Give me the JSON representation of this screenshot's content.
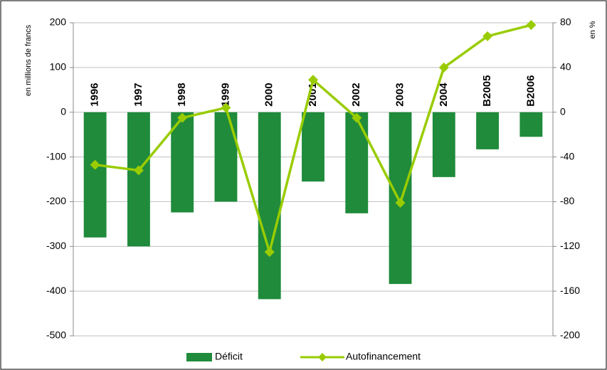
{
  "chart_data": {
    "type": "bar",
    "categories": [
      "1996",
      "1997",
      "1998",
      "1999",
      "2000",
      "2001",
      "2002",
      "2003",
      "2004",
      "B2005",
      "B2006"
    ],
    "series": [
      {
        "name": "Déficit",
        "type": "bar",
        "color": "#1f8b3b",
        "values": [
          -280,
          -300,
          -224,
          -200,
          -418,
          -155,
          -226,
          -384,
          -145,
          -83,
          -55
        ]
      },
      {
        "name": "Autofinancement",
        "type": "line",
        "axis": "y2",
        "color": "#99cc00",
        "values": [
          -47,
          -52,
          -5,
          4,
          -125,
          29,
          -5,
          -81,
          40,
          68,
          78
        ]
      }
    ],
    "ylabel": "en millions de francs",
    "y2label": "en %",
    "ylim": [
      -500,
      200
    ],
    "yticks": [
      200,
      100,
      0,
      -100,
      -200,
      -300,
      -400,
      -500
    ],
    "y2lim": [
      -200,
      80
    ],
    "y2ticks": [
      80,
      40,
      0,
      -40,
      -80,
      -120,
      -160,
      -200
    ],
    "grid": true,
    "legend": "bottom"
  }
}
